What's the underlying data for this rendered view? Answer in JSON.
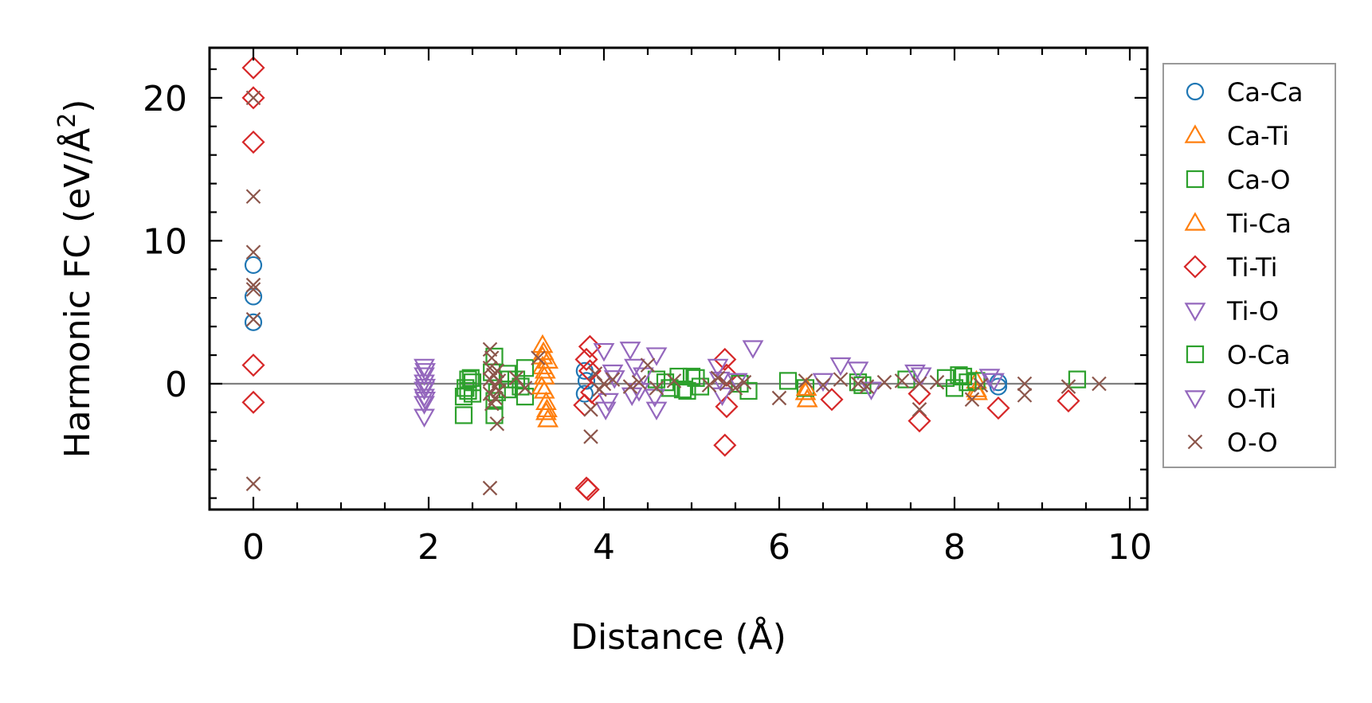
{
  "chart_data": {
    "type": "scatter",
    "title": "",
    "xlabel": "Distance (Å)",
    "ylabel_main": "Harmonic FC (eV/Å",
    "ylabel_sup": "2",
    "ylabel_close": ")",
    "xlim": [
      -0.5,
      10.2
    ],
    "ylim": [
      -8.8,
      23.5
    ],
    "xticks": [
      0,
      2,
      4,
      6,
      8,
      10
    ],
    "xtick_labels": [
      "0",
      "2",
      "4",
      "6",
      "8",
      "10"
    ],
    "yticks": [
      0,
      10,
      20
    ],
    "ytick_labels": [
      "0",
      "10",
      "20"
    ],
    "x_minor_step": 0.5,
    "y_minor_step": 2,
    "zero_line": true,
    "grid": false,
    "legend_position": "right",
    "series": [
      {
        "name": "Ca-Ca",
        "marker": "circle",
        "color": "#1f77b4",
        "x": [
          0,
          0,
          0,
          3.78,
          3.78,
          3.8,
          8.5,
          8.5
        ],
        "y": [
          8.3,
          6.1,
          4.3,
          0.9,
          -0.7,
          0.2,
          0.1,
          -0.2
        ]
      },
      {
        "name": "Ca-Ti",
        "marker": "triangle-up",
        "color": "#ff7f0e",
        "x": [
          3.3,
          3.3,
          3.3,
          3.32,
          3.32,
          3.34,
          3.34,
          3.36,
          3.36,
          6.3,
          6.32,
          8.25,
          8.25
        ],
        "y": [
          2.7,
          1.9,
          1.2,
          0.5,
          -0.5,
          -1.3,
          -2.0,
          -2.5,
          1.6,
          -0.6,
          -1.1,
          -0.4,
          0.2
        ]
      },
      {
        "name": "Ca-O",
        "marker": "square",
        "color": "#2ca02c",
        "x": [
          2.4,
          2.4,
          2.45,
          2.45,
          2.5,
          2.5,
          2.75,
          2.75,
          2.75,
          2.9,
          2.9,
          3.0,
          3.1,
          3.1,
          4.6,
          4.75,
          4.85,
          4.95,
          5.05,
          5.1,
          5.65,
          6.1,
          6.3,
          6.9,
          7.45,
          7.9,
          8.0,
          8.1,
          8.25,
          9.4
        ],
        "y": [
          -2.2,
          -0.9,
          -0.5,
          0.3,
          0.1,
          -0.7,
          1.9,
          -1.2,
          -2.2,
          0.7,
          -0.4,
          0.3,
          -0.9,
          1.1,
          0.3,
          -0.3,
          0.5,
          -0.5,
          0.4,
          -0.2,
          -0.5,
          0.2,
          -0.3,
          0.1,
          0.3,
          0.4,
          -0.3,
          0.5,
          0.2,
          0.3
        ]
      },
      {
        "name": "Ti-Ca",
        "marker": "triangle-up",
        "color": "#ff7f0e",
        "x": [
          3.31,
          3.33,
          3.35,
          3.29,
          6.31,
          8.26
        ],
        "y": [
          2.2,
          0.9,
          -1.8,
          -0.2,
          -0.3,
          -0.6
        ]
      },
      {
        "name": "Ti-Ti",
        "marker": "diamond",
        "color": "#d62728",
        "x": [
          0,
          0,
          0,
          0,
          0,
          3.78,
          3.8,
          3.8,
          3.82,
          3.84,
          3.84,
          3.86,
          5.38,
          5.38,
          5.4,
          5.4,
          6.6,
          7.6,
          7.6,
          8.5,
          9.3
        ],
        "y": [
          22.1,
          20.0,
          16.9,
          1.3,
          -1.3,
          -1.5,
          1.7,
          -7.3,
          -7.4,
          2.6,
          0.9,
          -0.6,
          1.7,
          -4.3,
          -1.6,
          0.6,
          -1.1,
          -2.6,
          -0.7,
          -1.7,
          -1.2
        ]
      },
      {
        "name": "Ti-O",
        "marker": "triangle-down",
        "color": "#9467bd",
        "x": [
          1.95,
          1.95,
          1.95,
          1.95,
          1.95,
          1.95,
          1.95,
          4.0,
          4.05,
          4.1,
          4.3,
          4.35,
          4.4,
          4.6,
          4.6,
          5.3,
          5.35,
          5.7,
          6.7,
          6.9,
          7.55
        ],
        "y": [
          1.2,
          0.6,
          0.1,
          -0.4,
          -0.9,
          -1.4,
          -2.3,
          2.3,
          -1.2,
          0.8,
          2.4,
          1.2,
          -0.5,
          2.0,
          -1.8,
          1.2,
          -0.8,
          2.5,
          1.3,
          1.0,
          0.8
        ]
      },
      {
        "name": "O-Ca",
        "marker": "square",
        "color": "#2ca02c",
        "x": [
          2.42,
          2.48,
          2.72,
          2.78,
          2.92,
          3.05,
          4.7,
          4.9,
          5.0,
          5.55,
          6.95,
          8.05,
          8.15
        ],
        "y": [
          -0.3,
          0.4,
          0.8,
          -0.6,
          0.3,
          -0.2,
          0.1,
          -0.4,
          0.5,
          0.0,
          -0.1,
          0.6,
          0.1
        ]
      },
      {
        "name": "O-Ti",
        "marker": "triangle-down",
        "color": "#9467bd",
        "x": [
          1.96,
          1.96,
          1.96,
          4.02,
          4.12,
          4.32,
          4.45,
          4.58,
          5.32,
          5.52,
          6.5,
          7.05,
          7.62,
          8.4,
          8.45
        ],
        "y": [
          0.9,
          -0.2,
          -1.1,
          -1.8,
          0.4,
          -0.8,
          0.6,
          -0.9,
          0.3,
          0.2,
          0.2,
          -0.4,
          0.6,
          0.5,
          0.2
        ]
      },
      {
        "name": "O-O",
        "marker": "x",
        "color": "#8c564b",
        "x": [
          0,
          0,
          0,
          0,
          0,
          0,
          0,
          2.7,
          2.7,
          2.7,
          2.7,
          2.7,
          2.72,
          2.72,
          2.74,
          2.76,
          2.76,
          2.78,
          2.78,
          2.8,
          2.8,
          3.0,
          3.1,
          3.25,
          3.85,
          3.85,
          3.9,
          3.95,
          4.0,
          4.1,
          4.3,
          4.4,
          4.5,
          4.6,
          4.8,
          5.2,
          5.3,
          5.4,
          5.5,
          5.6,
          6.0,
          6.3,
          6.5,
          6.7,
          6.9,
          7.0,
          7.2,
          7.4,
          7.6,
          7.6,
          7.8,
          8.2,
          8.3,
          8.8,
          8.8,
          9.3,
          9.65
        ],
        "y": [
          20.0,
          13.1,
          9.2,
          6.9,
          6.6,
          4.5,
          -7.0,
          2.4,
          1.1,
          0.3,
          -0.7,
          -7.3,
          1.8,
          -1.4,
          0.6,
          -0.2,
          -1.0,
          0.9,
          -2.8,
          0.2,
          -0.5,
          0.4,
          -0.3,
          1.8,
          -1.8,
          -3.7,
          0.7,
          -0.4,
          0.0,
          0.3,
          -0.2,
          0.1,
          1.3,
          -0.3,
          0.2,
          -0.1,
          0.4,
          0.0,
          -0.3,
          0.1,
          -1.0,
          0.2,
          -0.1,
          0.3,
          0.0,
          -0.2,
          0.1,
          0.2,
          -1.8,
          0.0,
          0.1,
          -1.1,
          -0.1,
          -0.8,
          0.0,
          -0.2,
          0.0
        ]
      }
    ]
  }
}
